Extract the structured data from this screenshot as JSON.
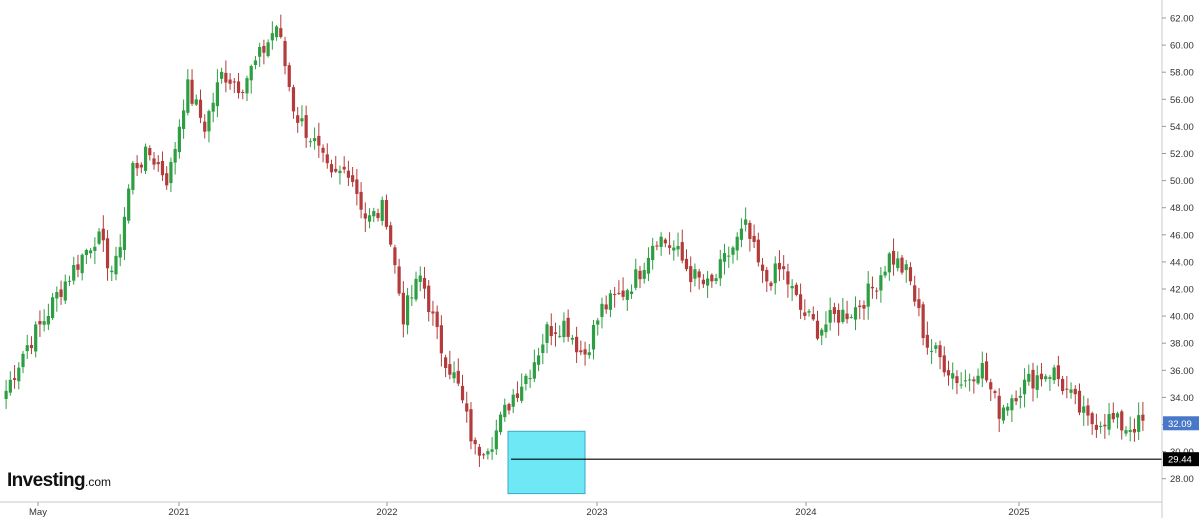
{
  "brand": {
    "name": "Investing",
    "suffix": ".com"
  },
  "colors": {
    "up": "#2e9e43",
    "down": "#b33b3b",
    "highlight": "#6fe8f5",
    "current_badge": "#4a78c8",
    "level_line": "#000000"
  },
  "chart_data": {
    "type": "candlestick",
    "ylim": [
      26,
      63
    ],
    "ticks_y": [
      "62.00",
      "60.00",
      "58.00",
      "56.00",
      "54.00",
      "52.00",
      "50.00",
      "48.00",
      "46.00",
      "44.00",
      "42.00",
      "40.00",
      "38.00",
      "36.00",
      "34.00",
      "32.00",
      "30.00",
      "28.00"
    ],
    "ticks_x": [
      "May",
      "2021",
      "2022",
      "2023",
      "2024",
      "2025"
    ],
    "current_price": "32.09",
    "support_level": "29.44",
    "support_value": 29.44,
    "highlight_range": [
      28.4,
      31.5
    ],
    "series": {
      "name": "",
      "x": [
        "2020-05",
        "2020-06",
        "2020-07",
        "2020-08",
        "2020-09",
        "2020-10",
        "2020-11",
        "2020-12",
        "2021-01",
        "2021-02",
        "2021-03",
        "2021-04",
        "2021-05",
        "2021-06",
        "2021-07",
        "2021-08",
        "2021-09",
        "2021-10",
        "2021-11",
        "2021-12",
        "2022-01",
        "2022-02",
        "2022-03",
        "2022-04",
        "2022-05",
        "2022-06",
        "2022-07",
        "2022-08",
        "2022-09",
        "2022-10",
        "2022-11",
        "2022-12",
        "2023-01",
        "2023-02",
        "2023-03",
        "2023-04",
        "2023-05",
        "2023-06",
        "2023-07",
        "2023-08",
        "2023-09",
        "2023-10",
        "2023-11",
        "2023-12",
        "2024-01",
        "2024-02",
        "2024-03",
        "2024-04",
        "2024-05",
        "2024-06",
        "2024-07",
        "2024-08",
        "2024-09",
        "2024-10",
        "2024-11",
        "2024-12",
        "2025-01",
        "2025-02",
        "2025-03",
        "2025-04",
        "2025-05",
        "2025-06",
        "2025-07",
        "2025-08"
      ],
      "values": [
        34.5,
        37.5,
        39.5,
        42.0,
        44.0,
        46.0,
        43.0,
        51.0,
        52.0,
        50.0,
        57.0,
        54.0,
        58.0,
        57.0,
        59.0,
        61.5,
        55.0,
        53.0,
        50.0,
        51.0,
        47.0,
        48.0,
        40.0,
        43.0,
        38.0,
        35.0,
        30.0,
        31.0,
        34.0,
        36.0,
        39.0,
        39.5,
        37.0,
        40.5,
        41.5,
        43.0,
        46.0,
        45.0,
        43.0,
        42.0,
        44.5,
        46.5,
        42.5,
        43.5,
        40.5,
        39.0,
        40.0,
        40.5,
        42.0,
        44.5,
        43.0,
        38.0,
        36.5,
        35.0,
        36.5,
        33.0,
        34.5,
        35.5,
        36.0,
        34.0,
        32.09,
        32.5,
        31.8,
        32.09
      ]
    }
  }
}
